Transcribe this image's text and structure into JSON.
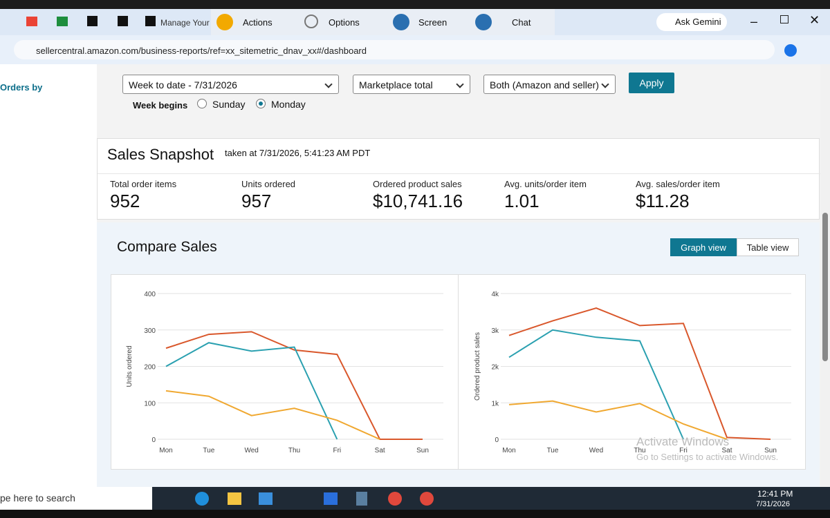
{
  "browser": {
    "tabs": [
      "Manage Your I"
    ],
    "toolbar": [
      "Actions",
      "Options",
      "Screen",
      "Chat"
    ],
    "gemini": "Ask Gemini",
    "url": "sellercentral.amazon.com/business-reports/ref=xx_sitemetric_dnav_xx#/dashboard"
  },
  "sidebar": {
    "item": "Orders by"
  },
  "filters": {
    "date": "Week to date - 7/31/2026",
    "breakdown": "Marketplace total",
    "channel": "Both (Amazon and seller)",
    "apply": "Apply",
    "week_begins": "Week begins",
    "options": [
      "Sunday",
      "Monday"
    ],
    "selected": 1
  },
  "snapshot": {
    "title": "Sales Snapshot",
    "taken": "taken at 7/31/2026, 5:41:23 AM PDT",
    "metrics": [
      {
        "label": "Total order items",
        "value": 952
      },
      {
        "label": "Units ordered",
        "value": 957
      },
      {
        "label": "Ordered product sales",
        "value": "$10,741.16"
      },
      {
        "label": "Avg. units/order item",
        "value": 1.01
      },
      {
        "label": "Avg. sales/order item",
        "value": "$11.28"
      }
    ]
  },
  "compare": {
    "title": "Compare Sales",
    "views": [
      "Graph view",
      "Table view"
    ],
    "active": 0
  },
  "chart_data": [
    {
      "type": "line",
      "y_label": "Units ordered",
      "categories": [
        "Mon",
        "Tue",
        "Wed",
        "Thu",
        "Fri",
        "Sat",
        "Sun"
      ],
      "ylim": [
        0,
        400
      ],
      "yticks": [
        0,
        100,
        200,
        300,
        400
      ],
      "grid": true,
      "series": [
        {
          "color": "#d9572b",
          "values": [
            250,
            288,
            295,
            245,
            233,
            0,
            0
          ]
        },
        {
          "color": "#2aa0b0",
          "values": [
            200,
            265,
            242,
            253,
            0,
            null,
            null
          ]
        },
        {
          "color": "#f0a830",
          "values": [
            133,
            118,
            65,
            85,
            52,
            0,
            null
          ]
        }
      ]
    },
    {
      "type": "line",
      "y_label": "Ordered product sales",
      "categories": [
        "Mon",
        "Tue",
        "Wed",
        "Thu",
        "Fri",
        "Sat",
        "Sun"
      ],
      "ylim": [
        0,
        4000
      ],
      "yticks": [
        0,
        {
          "value": 1000,
          "label": "1k"
        },
        {
          "value": 2000,
          "label": "2k"
        },
        {
          "value": 3000,
          "label": "3k"
        },
        {
          "value": 4000,
          "label": "4k"
        }
      ],
      "grid": true,
      "series": [
        {
          "color": "#d9572b",
          "values": [
            2850,
            3250,
            3600,
            3120,
            3180,
            50,
            0
          ]
        },
        {
          "color": "#2aa0b0",
          "values": [
            2250,
            3000,
            2800,
            2700,
            0,
            null,
            null
          ]
        },
        {
          "color": "#f0a830",
          "values": [
            950,
            1050,
            750,
            980,
            420,
            0,
            null
          ]
        }
      ]
    }
  ],
  "watermark": {
    "title": "Activate Windows",
    "text": "Go to Settings to activate Windows."
  },
  "taskbar": {
    "search": "pe here to search",
    "time": "12:41 PM",
    "date": "7/31/2026"
  }
}
